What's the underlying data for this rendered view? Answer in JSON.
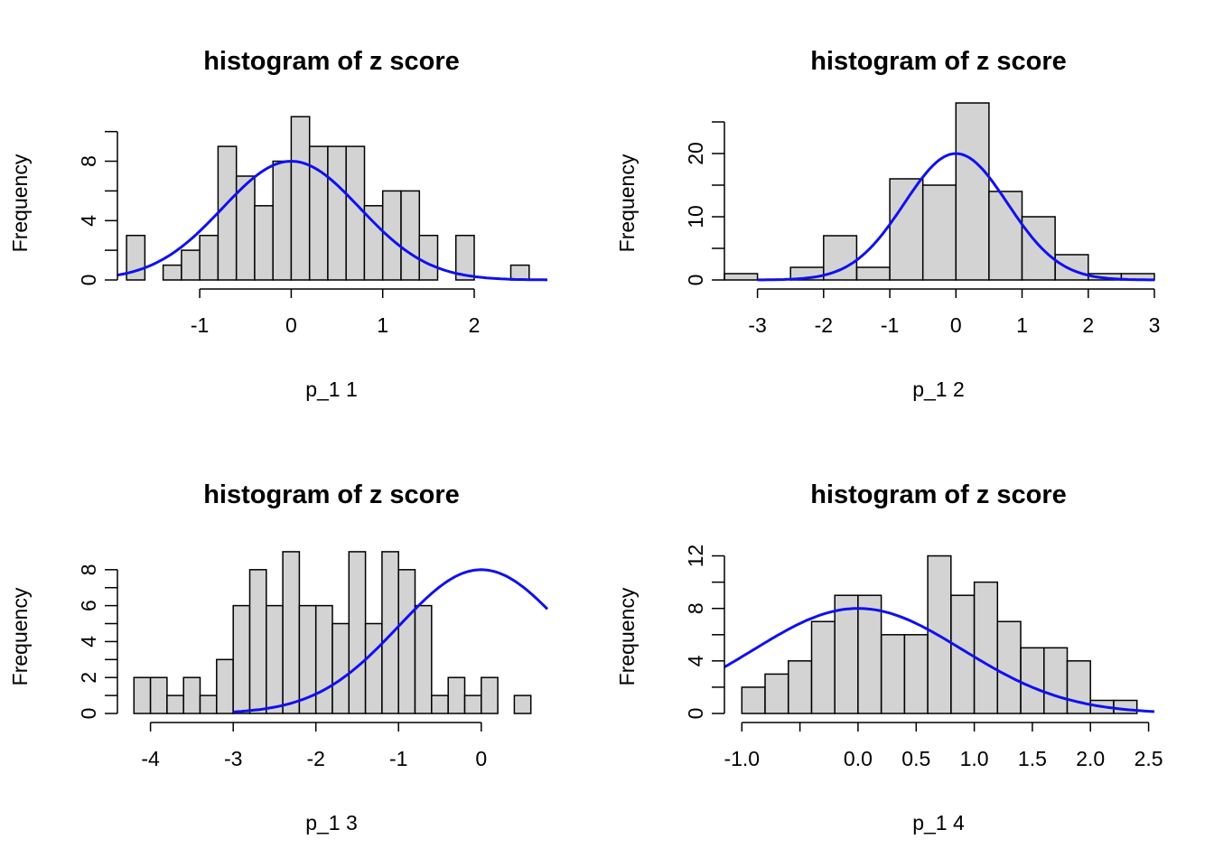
{
  "chart_data": [
    {
      "type": "bar",
      "title": "histogram of z score",
      "xlabel": "p_1 1",
      "ylabel": "Frequency",
      "xlim": [
        -1.9,
        2.8
      ],
      "ylim": [
        0,
        11.5
      ],
      "x_ticks": [
        -1,
        0,
        1,
        2
      ],
      "x_tick_labels": [
        "-1",
        "0",
        "1",
        "2"
      ],
      "y_ticks": [
        0,
        4,
        8
      ],
      "y_tick_labels": [
        "0",
        "4",
        "8"
      ],
      "y_axis_range": [
        0,
        10
      ],
      "bin_width": 0.2,
      "bins_start": [
        -1.8,
        -1.6,
        -1.4,
        -1.2,
        -1.0,
        -0.8,
        -0.6,
        -0.4,
        -0.2,
        0.0,
        0.2,
        0.4,
        0.6,
        0.8,
        1.0,
        1.2,
        1.4,
        1.6,
        1.8,
        2.0,
        2.2,
        2.4
      ],
      "values": [
        3,
        0,
        1,
        2,
        3,
        9,
        7,
        5,
        8,
        11,
        9,
        9,
        9,
        5,
        6,
        6,
        3,
        0,
        3,
        0,
        0,
        1
      ],
      "curve": {
        "color": "#1010ee",
        "mean": 0.0,
        "sd": 0.75,
        "peak": 8.0,
        "x_range": [
          -1.9,
          2.8
        ]
      },
      "bar_color": "#d3d3d3",
      "grid": false
    },
    {
      "type": "bar",
      "title": "histogram of z score",
      "xlabel": "p_1 2",
      "ylabel": "Frequency",
      "xlim": [
        -3.5,
        3.0
      ],
      "ylim": [
        0,
        27
      ],
      "x_ticks": [
        -3,
        -2,
        -1,
        0,
        1,
        2,
        3
      ],
      "x_tick_labels": [
        "-3",
        "-2",
        "-1",
        "0",
        "1",
        "2",
        "3"
      ],
      "y_ticks": [
        0,
        10,
        20
      ],
      "y_tick_labels": [
        "0",
        "10",
        "20"
      ],
      "y_axis_range": [
        0,
        25
      ],
      "bin_width": 0.5,
      "bins_start": [
        -3.5,
        -3.0,
        -2.5,
        -2.0,
        -1.5,
        -1.0,
        -0.5,
        0.0,
        0.5,
        1.0,
        1.5,
        2.0,
        2.5
      ],
      "values": [
        1,
        0,
        2,
        7,
        2,
        16,
        15,
        28,
        14,
        10,
        4,
        1,
        1
      ],
      "curve": {
        "color": "#1010ee",
        "mean": 0.0,
        "sd": 0.78,
        "peak": 20.0,
        "x_range": [
          -3.0,
          3.0
        ]
      },
      "bar_color": "#d3d3d3",
      "grid": false
    },
    {
      "type": "bar",
      "title": "histogram of z score",
      "xlabel": "p_1 3",
      "ylabel": "Frequency",
      "xlim": [
        -4.4,
        0.8
      ],
      "ylim": [
        0,
        9.5
      ],
      "x_ticks": [
        -4,
        -3,
        -2,
        -1,
        0
      ],
      "x_tick_labels": [
        "-4",
        "-3",
        "-2",
        "-1",
        "0"
      ],
      "y_ticks": [
        0,
        2,
        4,
        6,
        8
      ],
      "y_tick_labels": [
        "0",
        "2",
        "4",
        "6",
        "8"
      ],
      "y_axis_range": [
        0,
        8
      ],
      "bin_width": 0.2,
      "bins_start": [
        -4.2,
        -4.0,
        -3.8,
        -3.6,
        -3.4,
        -3.2,
        -3.0,
        -2.8,
        -2.6,
        -2.4,
        -2.2,
        -2.0,
        -1.8,
        -1.6,
        -1.4,
        -1.2,
        -1.0,
        -0.8,
        -0.6,
        -0.4,
        -0.2,
        0.0,
        0.2,
        0.4
      ],
      "values": [
        2,
        2,
        1,
        2,
        1,
        3,
        6,
        8,
        6,
        9,
        6,
        6,
        5,
        9,
        5,
        9,
        8,
        6,
        1,
        2,
        1,
        2,
        0,
        1
      ],
      "curve": {
        "color": "#1010ee",
        "mean": 0.0,
        "sd": 1.0,
        "peak": 8.0,
        "x_range": [
          -3.0,
          0.8
        ]
      },
      "bar_color": "#d3d3d3",
      "grid": false
    },
    {
      "type": "bar",
      "title": "histogram of z score",
      "xlabel": "p_1 4",
      "ylabel": "Frequency",
      "xlim": [
        -1.15,
        2.55
      ],
      "ylim": [
        0,
        13
      ],
      "x_ticks": [
        -1.0,
        -0.5,
        0.0,
        0.5,
        1.0,
        1.5,
        2.0,
        2.5
      ],
      "x_tick_labels": [
        "-1.0",
        "",
        "0.0",
        "0.5",
        "1.0",
        "1.5",
        "2.0",
        "2.5"
      ],
      "y_ticks": [
        0,
        4,
        8,
        12
      ],
      "y_tick_labels": [
        "0",
        "4",
        "8",
        "12"
      ],
      "y_axis_range": [
        0,
        12
      ],
      "bin_width": 0.2,
      "bins_start": [
        -1.0,
        -0.8,
        -0.6,
        -0.4,
        -0.2,
        0.0,
        0.2,
        0.4,
        0.6,
        0.8,
        1.0,
        1.2,
        1.4,
        1.6,
        1.8,
        2.0,
        2.2
      ],
      "values": [
        2,
        3,
        4,
        7,
        9,
        9,
        6,
        6,
        12,
        9,
        10,
        7,
        5,
        5,
        4,
        1,
        1
      ],
      "curve": {
        "color": "#1010ee",
        "mean": 0.0,
        "sd": 0.9,
        "peak": 8.0,
        "x_range": [
          -1.15,
          2.55
        ]
      },
      "bar_color": "#d3d3d3",
      "grid": false
    }
  ]
}
